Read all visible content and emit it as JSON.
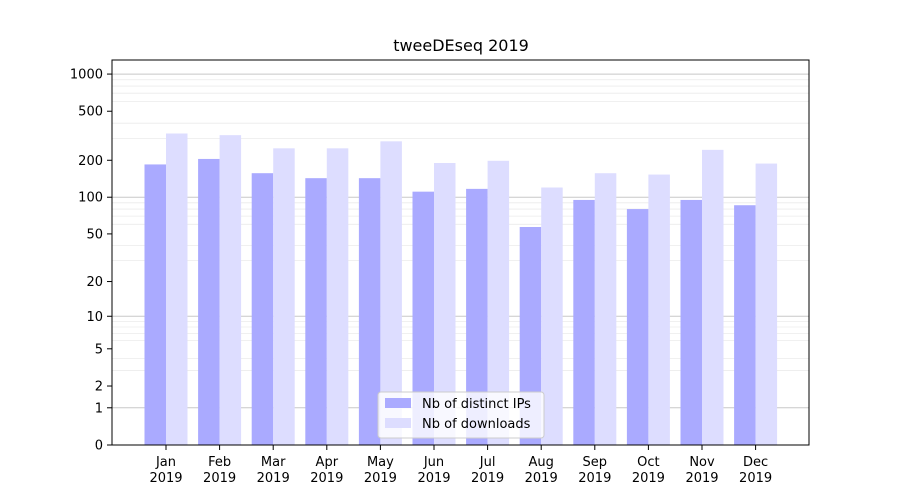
{
  "chart_data": {
    "type": "bar",
    "title": "tweeDEseq 2019",
    "xlabel": "",
    "ylabel": "",
    "y_scale": "log1p",
    "ylim": [
      0,
      1300
    ],
    "yticks": [
      0,
      1,
      2,
      5,
      10,
      20,
      50,
      100,
      200,
      500,
      1000
    ],
    "grid": true,
    "legend_position": "bottom-center",
    "categories": [
      [
        "Jan",
        "2019"
      ],
      [
        "Feb",
        "2019"
      ],
      [
        "Mar",
        "2019"
      ],
      [
        "Apr",
        "2019"
      ],
      [
        "May",
        "2019"
      ],
      [
        "Jun",
        "2019"
      ],
      [
        "Jul",
        "2019"
      ],
      [
        "Aug",
        "2019"
      ],
      [
        "Sep",
        "2019"
      ],
      [
        "Oct",
        "2019"
      ],
      [
        "Nov",
        "2019"
      ],
      [
        "Dec",
        "2019"
      ]
    ],
    "series": [
      {
        "name": "Nb of distinct IPs",
        "color": "#aaaaff",
        "values": [
          185,
          205,
          157,
          143,
          143,
          111,
          117,
          57,
          95,
          80,
          95,
          86
        ]
      },
      {
        "name": "Nb of downloads",
        "color": "#ddddff",
        "values": [
          330,
          320,
          250,
          250,
          285,
          190,
          198,
          120,
          157,
          153,
          243,
          188
        ]
      }
    ]
  }
}
